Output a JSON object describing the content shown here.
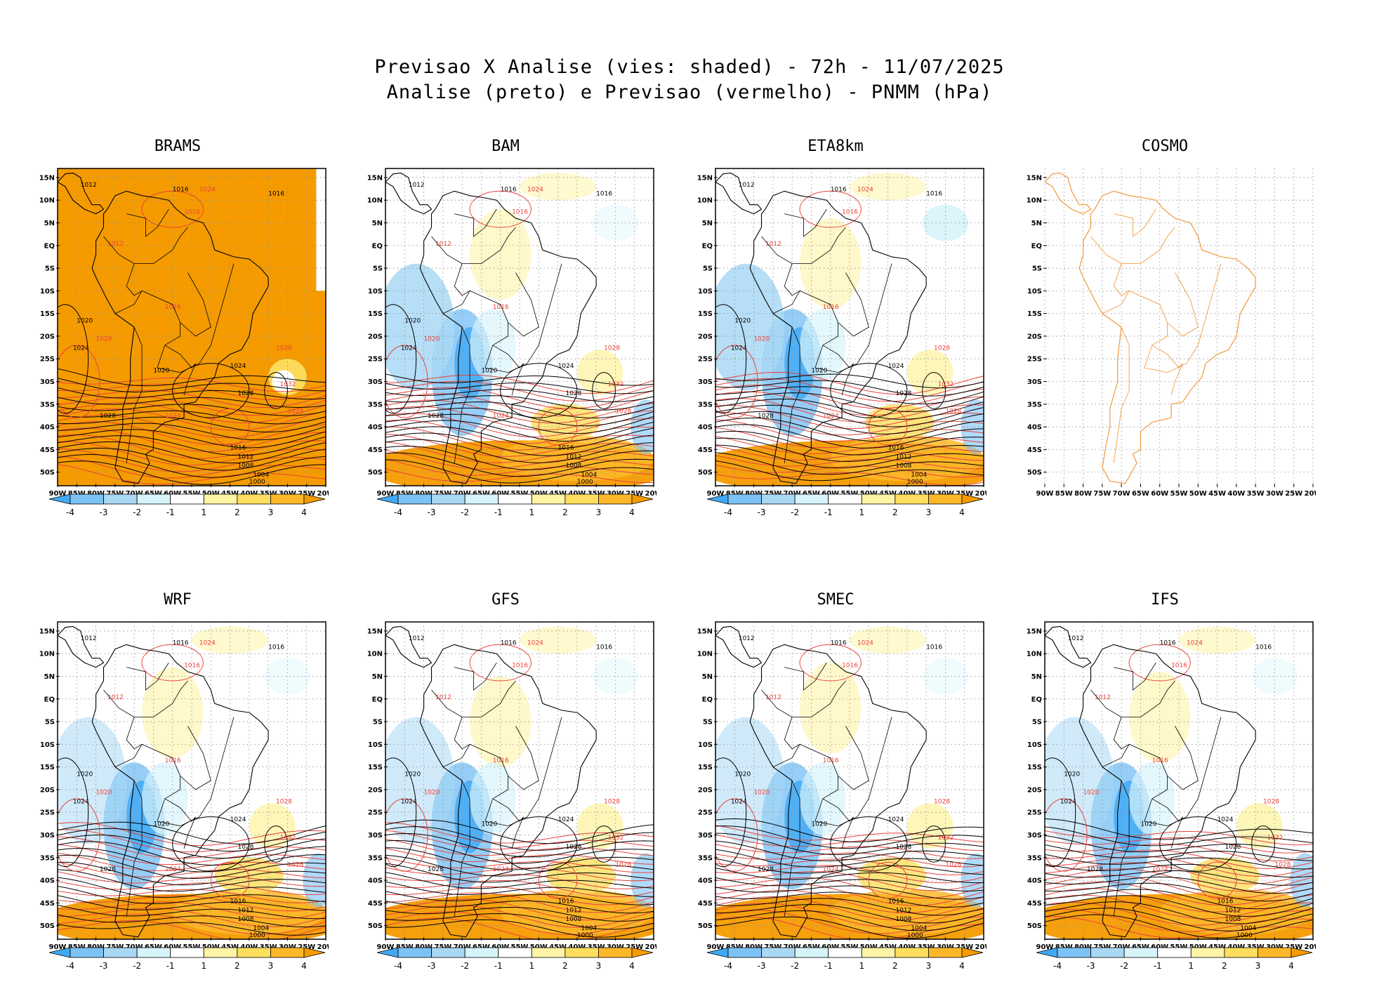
{
  "title": {
    "line1": "Previsao X Analise (vies: shaded) - 72h - 11/07/2025",
    "line2": "Analise (preto) e Previsao (vermelho) - PNMM (hPa)"
  },
  "axes": {
    "lat_labels": [
      "15N",
      "10N",
      "5N",
      "EQ",
      "5S",
      "10S",
      "15S",
      "20S",
      "25S",
      "30S",
      "35S",
      "40S",
      "45S",
      "50S"
    ],
    "lon_labels": [
      "90W",
      "85W",
      "80W",
      "75W",
      "70W",
      "65W",
      "60W",
      "55W",
      "50W",
      "45W",
      "40W",
      "35W",
      "30W",
      "25W",
      "20W"
    ]
  },
  "colorbar": {
    "labels": [
      "-4",
      "-3",
      "-2",
      "-1",
      "1",
      "2",
      "3",
      "4"
    ],
    "colors": [
      "#3fa9f5",
      "#7cc2f5",
      "#a9d8f5",
      "#d7f4fb",
      "#ffffff",
      "#fdf4a6",
      "#fdde5e",
      "#fdb82a",
      "#f59b00"
    ]
  },
  "palette": {
    "analysis_contour": "#000000",
    "forecast_contour": "#e8423a",
    "cosmo_coast": "#f0902a",
    "brams_fill": "#f59b00",
    "grid": "#8a8a8a"
  },
  "panels": [
    {
      "name": "BRAMS",
      "mode": "brams"
    },
    {
      "name": "BAM",
      "mode": "bias"
    },
    {
      "name": "ETA8km",
      "mode": "bias"
    },
    {
      "name": "COSMO",
      "mode": "cosmo"
    },
    {
      "name": "WRF",
      "mode": "bias"
    },
    {
      "name": "GFS",
      "mode": "bias"
    },
    {
      "name": "SMEC",
      "mode": "bias"
    },
    {
      "name": "IFS",
      "mode": "bias"
    }
  ],
  "contour_labels": {
    "analysis": [
      "1012",
      "1016",
      "1016",
      "1020",
      "1024",
      "1028",
      "1028",
      "1024",
      "1020",
      "1016",
      "1012",
      "1008",
      "1004",
      "1000"
    ],
    "forecast": [
      "1016",
      "1024",
      "1028",
      "1032",
      "1020",
      "1012",
      "1016",
      "1024",
      "1028"
    ]
  }
}
